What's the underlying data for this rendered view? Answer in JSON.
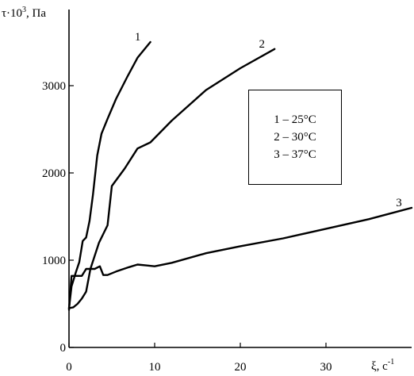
{
  "chart_data": {
    "type": "line",
    "ylabel_main": "τ·10",
    "ylabel_sup": "3",
    "ylabel_unit": ", Па",
    "xlabel": "ξ, c",
    "xlabel_sup": "-1",
    "xlim": [
      0,
      40
    ],
    "ylim": [
      0,
      3700
    ],
    "x_ticks": [
      0,
      10,
      20,
      30
    ],
    "x_tick_labels": [
      "0",
      "10",
      "20",
      "30"
    ],
    "y_ticks": [
      0,
      1000,
      2000,
      3000
    ],
    "y_tick_labels": [
      "0",
      "1000",
      "2000",
      "3000"
    ],
    "grid": false,
    "legend_placement": "center-right, boxed",
    "legend": [
      "1 – 25°C",
      "2 – 30°C",
      "3 – 37°C"
    ],
    "series": [
      {
        "label": "1",
        "x": [
          0,
          0.3,
          0.8,
          1.2,
          1.6,
          2,
          2.4,
          2.8,
          3.3,
          3.8,
          4.5,
          5.5,
          6.8,
          8,
          9.5
        ],
        "y": [
          450,
          700,
          860,
          980,
          1220,
          1260,
          1450,
          1750,
          2200,
          2450,
          2620,
          2850,
          3100,
          3320,
          3500
        ]
      },
      {
        "label": "2",
        "x": [
          0,
          0.5,
          1,
          1.5,
          2,
          2.5,
          3,
          3.5,
          4,
          4.5,
          5,
          6.5,
          8,
          9.5,
          12,
          16,
          20,
          24
        ],
        "y": [
          450,
          460,
          500,
          560,
          640,
          900,
          1050,
          1200,
          1300,
          1400,
          1850,
          2050,
          2280,
          2350,
          2600,
          2950,
          3200,
          3420
        ]
      },
      {
        "label": "3",
        "x": [
          0,
          0.3,
          0.6,
          1,
          1.5,
          2,
          2.5,
          3,
          3.6,
          4,
          4.5,
          5.5,
          7,
          8,
          9,
          10,
          12,
          16,
          20,
          25,
          30,
          35,
          40
        ],
        "y": [
          430,
          820,
          820,
          820,
          820,
          900,
          900,
          900,
          930,
          830,
          830,
          870,
          920,
          950,
          940,
          930,
          970,
          1080,
          1160,
          1250,
          1360,
          1470,
          1600
        ]
      }
    ]
  }
}
